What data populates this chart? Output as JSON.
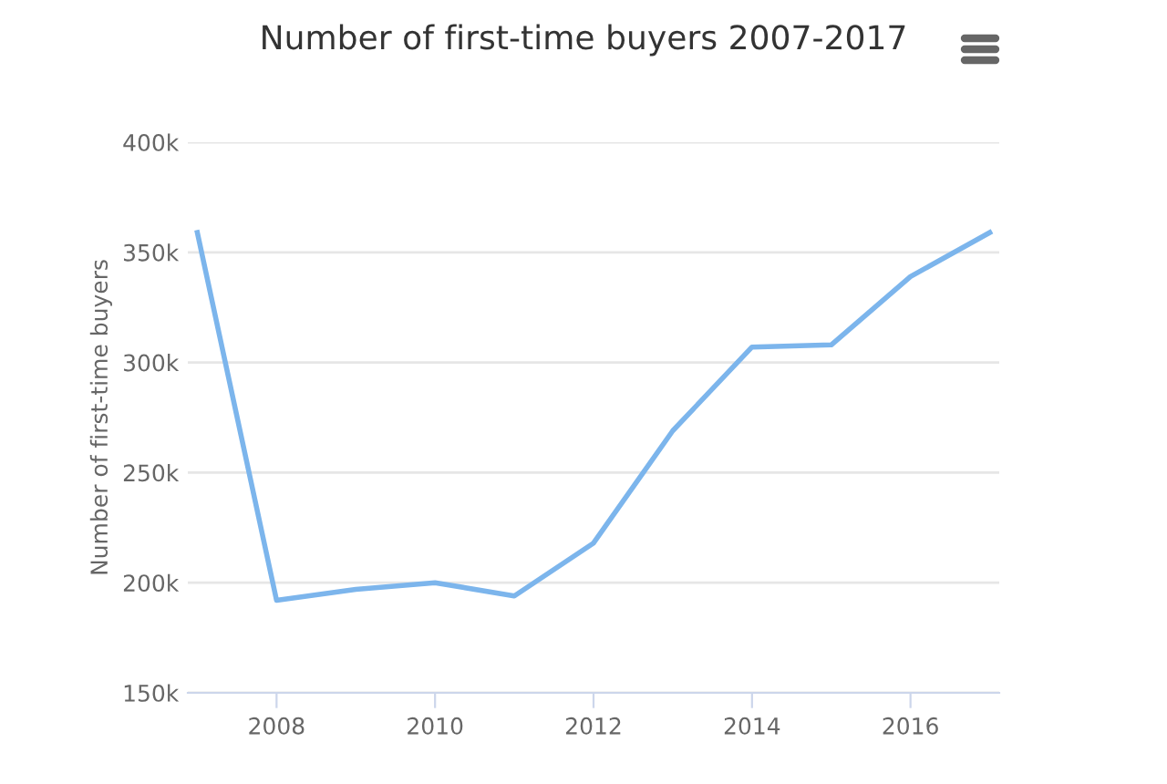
{
  "chart_data": {
    "type": "line",
    "title": "Number of first-time buyers 2007-2017",
    "ylabel": "Number of first-time buyers",
    "x": [
      2007,
      2008,
      2009,
      2010,
      2011,
      2012,
      2013,
      2014,
      2015,
      2016,
      2017
    ],
    "series": [
      {
        "color": "#7cb5ec",
        "values": [
          359000,
          192000,
          197000,
          200000,
          194000,
          218000,
          269000,
          307000,
          308000,
          339000,
          359000
        ]
      }
    ],
    "xlim": [
      2006.88,
      2017.12
    ],
    "xticks": [
      2008,
      2010,
      2012,
      2014,
      2016
    ],
    "ylim": [
      150000,
      400000
    ],
    "yticks": [
      {
        "value": 150000,
        "label": "150k"
      },
      {
        "value": 200000,
        "label": "200k"
      },
      {
        "value": 250000,
        "label": "250k"
      },
      {
        "value": 300000,
        "label": "300k"
      },
      {
        "value": 350000,
        "label": "350k"
      },
      {
        "value": 400000,
        "label": "400k"
      }
    ],
    "grid": "y",
    "marker": "none",
    "line_style": "solid",
    "legend": false
  }
}
